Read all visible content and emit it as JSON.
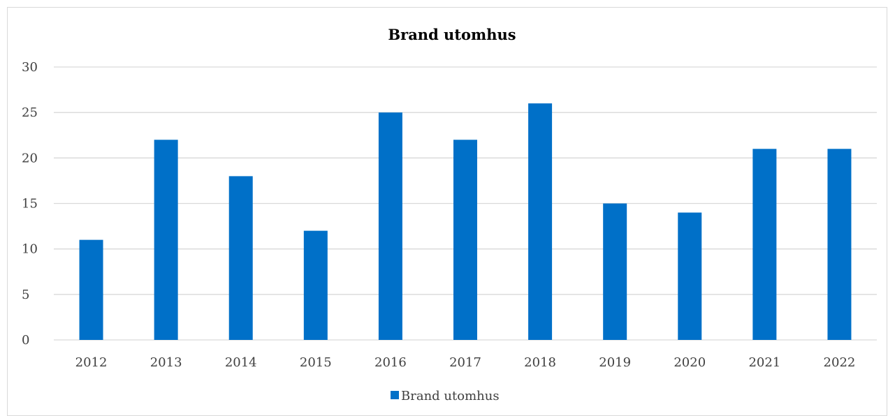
{
  "chart_data": {
    "type": "bar",
    "title": "Brand utomhus",
    "xlabel": "",
    "ylabel": "",
    "categories": [
      "2012",
      "2013",
      "2014",
      "2015",
      "2016",
      "2017",
      "2018",
      "2019",
      "2020",
      "2021",
      "2022"
    ],
    "series": [
      {
        "name": "Brand utomhus",
        "color": "#0070c8",
        "values": [
          11,
          22,
          18,
          12,
          25,
          22,
          26,
          15,
          14,
          21,
          21
        ]
      }
    ],
    "ylim": [
      0,
      30
    ],
    "yticks": [
      0,
      5,
      10,
      15,
      20,
      25,
      30
    ],
    "grid": true,
    "legend": "bottom",
    "gridline_color": "#d9d9d9"
  }
}
